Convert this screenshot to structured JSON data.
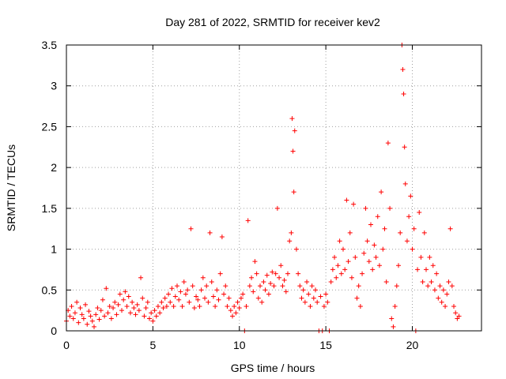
{
  "chart_data": {
    "type": "scatter",
    "title": "Day 281 of 2022, SRMTID for receiver kev2",
    "xlabel": "GPS time / hours",
    "ylabel": "SRMTID / TECUs",
    "xlim": [
      0,
      24
    ],
    "ylim": [
      0,
      3.5
    ],
    "xticks": [
      0,
      5,
      10,
      15,
      20
    ],
    "xtick_labels": [
      "0",
      "5",
      "10",
      "15",
      "20"
    ],
    "yticks": [
      0,
      0.5,
      1,
      1.5,
      2,
      2.5,
      3,
      3.5
    ],
    "ytick_labels": [
      "0",
      "0.5",
      "1",
      "1.5",
      "2",
      "2.5",
      "3",
      "3.5"
    ],
    "grid": true,
    "marker": "+",
    "color": "#ff0000",
    "series": [
      {
        "name": "SRMTID",
        "points": [
          [
            0.0,
            0.12
          ],
          [
            0.1,
            0.25
          ],
          [
            0.2,
            0.18
          ],
          [
            0.3,
            0.3
          ],
          [
            0.4,
            0.15
          ],
          [
            0.5,
            0.22
          ],
          [
            0.6,
            0.35
          ],
          [
            0.7,
            0.1
          ],
          [
            0.8,
            0.28
          ],
          [
            0.9,
            0.2
          ],
          [
            1.0,
            0.15
          ],
          [
            1.1,
            0.32
          ],
          [
            1.2,
            0.08
          ],
          [
            1.3,
            0.24
          ],
          [
            1.4,
            0.18
          ],
          [
            1.5,
            0.12
          ],
          [
            1.6,
            0.05
          ],
          [
            1.7,
            0.2
          ],
          [
            1.8,
            0.28
          ],
          [
            1.9,
            0.14
          ],
          [
            2.0,
            0.25
          ],
          [
            2.1,
            0.38
          ],
          [
            2.2,
            0.18
          ],
          [
            2.3,
            0.52
          ],
          [
            2.4,
            0.22
          ],
          [
            2.5,
            0.3
          ],
          [
            2.6,
            0.15
          ],
          [
            2.7,
            0.28
          ],
          [
            2.8,
            0.35
          ],
          [
            2.9,
            0.2
          ],
          [
            3.0,
            0.32
          ],
          [
            3.1,
            0.45
          ],
          [
            3.2,
            0.25
          ],
          [
            3.3,
            0.38
          ],
          [
            3.4,
            0.48
          ],
          [
            3.5,
            0.3
          ],
          [
            3.6,
            0.42
          ],
          [
            3.7,
            0.22
          ],
          [
            3.8,
            0.35
          ],
          [
            3.9,
            0.28
          ],
          [
            4.0,
            0.2
          ],
          [
            4.1,
            0.32
          ],
          [
            4.2,
            0.25
          ],
          [
            4.3,
            0.65
          ],
          [
            4.4,
            0.4
          ],
          [
            4.5,
            0.18
          ],
          [
            4.6,
            0.28
          ],
          [
            4.7,
            0.35
          ],
          [
            4.8,
            0.15
          ],
          [
            4.9,
            0.22
          ],
          [
            5.0,
            0.12
          ],
          [
            5.1,
            0.25
          ],
          [
            5.2,
            0.18
          ],
          [
            5.3,
            0.3
          ],
          [
            5.4,
            0.22
          ],
          [
            5.5,
            0.35
          ],
          [
            5.6,
            0.28
          ],
          [
            5.7,
            0.4
          ],
          [
            5.8,
            0.3
          ],
          [
            5.9,
            0.45
          ],
          [
            6.0,
            0.35
          ],
          [
            6.1,
            0.52
          ],
          [
            6.2,
            0.3
          ],
          [
            6.3,
            0.42
          ],
          [
            6.4,
            0.55
          ],
          [
            6.5,
            0.38
          ],
          [
            6.6,
            0.48
          ],
          [
            6.7,
            0.3
          ],
          [
            6.8,
            0.6
          ],
          [
            6.9,
            0.45
          ],
          [
            7.0,
            0.5
          ],
          [
            7.1,
            0.35
          ],
          [
            7.2,
            1.25
          ],
          [
            7.3,
            0.55
          ],
          [
            7.4,
            0.28
          ],
          [
            7.5,
            0.42
          ],
          [
            7.6,
            0.38
          ],
          [
            7.7,
            0.3
          ],
          [
            7.8,
            0.5
          ],
          [
            7.9,
            0.65
          ],
          [
            8.0,
            0.4
          ],
          [
            8.1,
            0.55
          ],
          [
            8.2,
            0.35
          ],
          [
            8.3,
            1.2
          ],
          [
            8.4,
            0.6
          ],
          [
            8.5,
            0.42
          ],
          [
            8.6,
            0.3
          ],
          [
            8.7,
            0.5
          ],
          [
            8.8,
            0.38
          ],
          [
            8.9,
            0.7
          ],
          [
            9.0,
            1.15
          ],
          [
            9.1,
            0.45
          ],
          [
            9.2,
            0.55
          ],
          [
            9.3,
            0.3
          ],
          [
            9.4,
            0.4
          ],
          [
            9.5,
            0.25
          ],
          [
            9.6,
            0.18
          ],
          [
            9.7,
            0.3
          ],
          [
            9.8,
            0.22
          ],
          [
            9.9,
            0.35
          ],
          [
            10.0,
            0.28
          ],
          [
            10.1,
            0.4
          ],
          [
            10.2,
            0.45
          ],
          [
            10.3,
            0.0
          ],
          [
            10.4,
            0.3
          ],
          [
            10.5,
            1.35
          ],
          [
            10.6,
            0.55
          ],
          [
            10.7,
            0.65
          ],
          [
            10.8,
            0.48
          ],
          [
            10.9,
            0.85
          ],
          [
            11.0,
            0.7
          ],
          [
            11.1,
            0.4
          ],
          [
            11.2,
            0.55
          ],
          [
            11.3,
            0.35
          ],
          [
            11.4,
            0.6
          ],
          [
            11.5,
            0.5
          ],
          [
            11.6,
            0.68
          ],
          [
            11.7,
            0.45
          ],
          [
            11.8,
            0.58
          ],
          [
            11.9,
            0.72
          ],
          [
            12.0,
            0.55
          ],
          [
            12.1,
            0.7
          ],
          [
            12.2,
            1.5
          ],
          [
            12.3,
            0.65
          ],
          [
            12.4,
            0.8
          ],
          [
            12.5,
            0.55
          ],
          [
            12.6,
            0.62
          ],
          [
            12.7,
            0.48
          ],
          [
            12.8,
            0.7
          ],
          [
            12.9,
            1.1
          ],
          [
            13.0,
            1.2
          ],
          [
            13.05,
            2.6
          ],
          [
            13.1,
            2.2
          ],
          [
            13.15,
            1.7
          ],
          [
            13.2,
            2.45
          ],
          [
            13.3,
            1.0
          ],
          [
            13.4,
            0.7
          ],
          [
            13.5,
            0.55
          ],
          [
            13.6,
            0.4
          ],
          [
            13.7,
            0.5
          ],
          [
            13.8,
            0.35
          ],
          [
            13.9,
            0.6
          ],
          [
            14.0,
            0.45
          ],
          [
            14.1,
            0.3
          ],
          [
            14.2,
            0.55
          ],
          [
            14.3,
            0.4
          ],
          [
            14.4,
            0.5
          ],
          [
            14.5,
            0.35
          ],
          [
            14.6,
            0.0
          ],
          [
            14.7,
            0.42
          ],
          [
            14.8,
            0.0
          ],
          [
            14.9,
            0.3
          ],
          [
            15.0,
            0.45
          ],
          [
            15.1,
            0.35
          ],
          [
            15.2,
            0.0
          ],
          [
            15.3,
            0.6
          ],
          [
            15.4,
            0.75
          ],
          [
            15.5,
            0.9
          ],
          [
            15.6,
            0.65
          ],
          [
            15.7,
            0.8
          ],
          [
            15.8,
            1.1
          ],
          [
            15.9,
            0.7
          ],
          [
            16.0,
            1.0
          ],
          [
            16.1,
            0.75
          ],
          [
            16.2,
            1.6
          ],
          [
            16.3,
            0.85
          ],
          [
            16.4,
            1.2
          ],
          [
            16.5,
            0.65
          ],
          [
            16.6,
            1.55
          ],
          [
            16.7,
            0.9
          ],
          [
            16.8,
            0.4
          ],
          [
            16.9,
            0.55
          ],
          [
            17.0,
            0.3
          ],
          [
            17.1,
            0.7
          ],
          [
            17.2,
            0.95
          ],
          [
            17.3,
            1.5
          ],
          [
            17.4,
            1.1
          ],
          [
            17.5,
            0.85
          ],
          [
            17.6,
            1.3
          ],
          [
            17.7,
            0.75
          ],
          [
            17.8,
            1.05
          ],
          [
            17.9,
            0.9
          ],
          [
            18.0,
            1.4
          ],
          [
            18.1,
            0.8
          ],
          [
            18.2,
            1.7
          ],
          [
            18.3,
            1.0
          ],
          [
            18.4,
            1.25
          ],
          [
            18.5,
            0.6
          ],
          [
            18.6,
            2.3
          ],
          [
            18.7,
            1.5
          ],
          [
            18.8,
            0.15
          ],
          [
            18.9,
            0.05
          ],
          [
            19.0,
            0.3
          ],
          [
            19.1,
            0.55
          ],
          [
            19.2,
            0.8
          ],
          [
            19.3,
            1.2
          ],
          [
            19.4,
            3.5
          ],
          [
            19.45,
            3.2
          ],
          [
            19.5,
            2.9
          ],
          [
            19.55,
            2.25
          ],
          [
            19.6,
            1.8
          ],
          [
            19.7,
            1.1
          ],
          [
            19.8,
            1.4
          ],
          [
            19.9,
            1.65
          ],
          [
            20.0,
            1.0
          ],
          [
            20.1,
            1.25
          ],
          [
            20.2,
            0.0
          ],
          [
            20.3,
            0.75
          ],
          [
            20.4,
            1.45
          ],
          [
            20.5,
            0.9
          ],
          [
            20.6,
            0.6
          ],
          [
            20.7,
            1.2
          ],
          [
            20.8,
            0.75
          ],
          [
            20.9,
            0.55
          ],
          [
            21.0,
            0.9
          ],
          [
            21.1,
            0.6
          ],
          [
            21.2,
            0.8
          ],
          [
            21.3,
            0.5
          ],
          [
            21.4,
            0.7
          ],
          [
            21.5,
            0.4
          ],
          [
            21.6,
            0.55
          ],
          [
            21.7,
            0.35
          ],
          [
            21.8,
            0.5
          ],
          [
            21.9,
            0.3
          ],
          [
            22.0,
            0.45
          ],
          [
            22.1,
            0.6
          ],
          [
            22.2,
            1.25
          ],
          [
            22.3,
            0.55
          ],
          [
            22.4,
            0.3
          ],
          [
            22.5,
            0.22
          ],
          [
            22.6,
            0.15
          ],
          [
            22.7,
            0.18
          ]
        ]
      }
    ]
  }
}
